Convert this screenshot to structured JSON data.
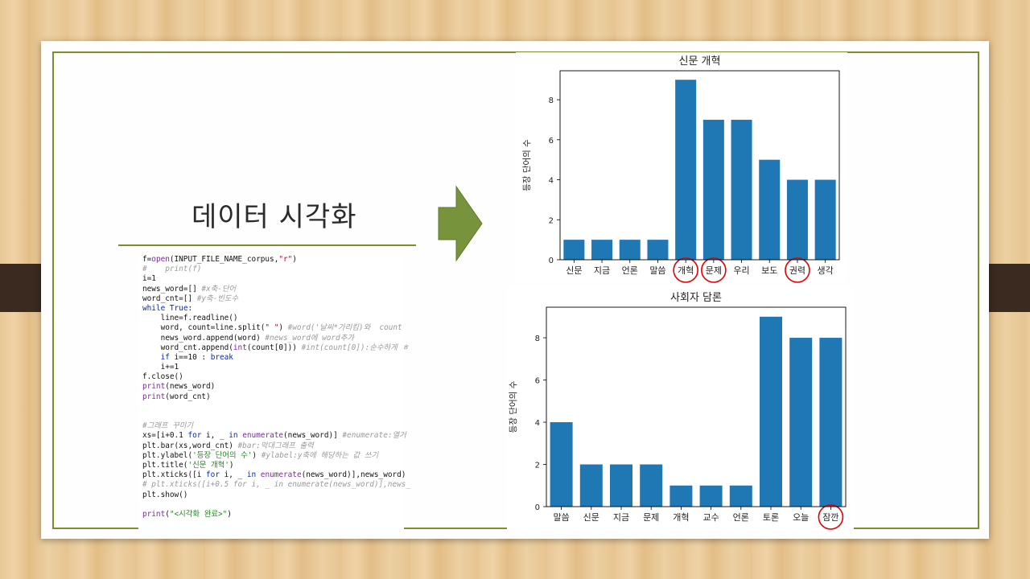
{
  "slide": {
    "title": "데이터 시각화"
  },
  "code_lines": [
    [
      {
        "t": "f="
      },
      {
        "t": "open",
        "cls": "p"
      },
      {
        "t": "(INPUT_FILE_NAME_corpus,"
      },
      {
        "t": "\"r\"",
        "cls": "s"
      },
      {
        "t": ")"
      }
    ],
    [
      {
        "t": "#    print(f)",
        "cls": "c"
      }
    ],
    [
      {
        "t": "i=1"
      }
    ],
    [
      {
        "t": "news_word=[] "
      },
      {
        "t": "#x축-단어",
        "cls": "c"
      }
    ],
    [
      {
        "t": "word_cnt=[] "
      },
      {
        "t": "#y축-빈도수",
        "cls": "c"
      }
    ],
    [
      {
        "t": "while",
        "cls": "k"
      },
      {
        "t": " "
      },
      {
        "t": "True",
        "cls": "k"
      },
      {
        "t": ":"
      }
    ],
    [
      {
        "t": "    line=f.readline()"
      }
    ],
    [
      {
        "t": "    word, count=line.split("
      },
      {
        "t": "\" \"",
        "cls": "s"
      },
      {
        "t": ") "
      },
      {
        "t": "#word('날씨*가리킴)와  count",
        "cls": "c"
      }
    ],
    [
      {
        "t": "    news_word.append(word) "
      },
      {
        "t": "#news_word에 word추가",
        "cls": "c"
      }
    ],
    [
      {
        "t": "    word_cnt.append("
      },
      {
        "t": "int",
        "cls": "p"
      },
      {
        "t": "(count[0])) "
      },
      {
        "t": "#int(count[0]):순수하게 ㅎ",
        "cls": "c"
      }
    ],
    [
      {
        "t": "    "
      },
      {
        "t": "if",
        "cls": "k"
      },
      {
        "t": " i==10 : "
      },
      {
        "t": "break",
        "cls": "k"
      }
    ],
    [
      {
        "t": "    i+=1"
      }
    ],
    [
      {
        "t": "f.close()"
      }
    ],
    [
      {
        "t": "print",
        "cls": "p"
      },
      {
        "t": "(news_word)"
      }
    ],
    [
      {
        "t": "print",
        "cls": "p"
      },
      {
        "t": "(word_cnt)"
      }
    ],
    [],
    [],
    [
      {
        "t": "#그래프 꾸미기",
        "cls": "c"
      }
    ],
    [
      {
        "t": "xs=[i+0.1 "
      },
      {
        "t": "for",
        "cls": "k"
      },
      {
        "t": " i, _ "
      },
      {
        "t": "in",
        "cls": "k"
      },
      {
        "t": " "
      },
      {
        "t": "enumerate",
        "cls": "p"
      },
      {
        "t": "(news_word)] "
      },
      {
        "t": "#enumerate:열거",
        "cls": "c"
      }
    ],
    [
      {
        "t": "plt.bar(xs,word_cnt) "
      },
      {
        "t": "#bar:막대그래프 출력",
        "cls": "c"
      }
    ],
    [
      {
        "t": "plt.ylabel("
      },
      {
        "t": "'등장 단어의 수'",
        "cls": "g"
      },
      {
        "t": ") "
      },
      {
        "t": "#ylabel:y축에 해당하는 값 쓰기",
        "cls": "c"
      }
    ],
    [
      {
        "t": "plt.title("
      },
      {
        "t": "'신문 개혁'",
        "cls": "g"
      },
      {
        "t": ")"
      }
    ],
    [
      {
        "t": "plt.xticks([i "
      },
      {
        "t": "for",
        "cls": "k"
      },
      {
        "t": " i, _ "
      },
      {
        "t": "in",
        "cls": "k"
      },
      {
        "t": " "
      },
      {
        "t": "enumerate",
        "cls": "p"
      },
      {
        "t": "(news_word)],news_word)"
      }
    ],
    [
      {
        "t": "# plt.xticks([i+0.5 for i, _ in enumerate(news_word)],news_",
        "cls": "c"
      }
    ],
    [
      {
        "t": "plt.show()"
      }
    ],
    [],
    [
      {
        "t": "print",
        "cls": "p"
      },
      {
        "t": "("
      },
      {
        "t": "\"<시각화 완료>\"",
        "cls": "g"
      },
      {
        "t": ")"
      }
    ]
  ],
  "chart_data": [
    {
      "type": "bar",
      "title": "신문 개혁",
      "ylabel": "등장 단어의 수",
      "xlabel": "",
      "categories": [
        "신문",
        "지금",
        "언론",
        "말씀",
        "개혁",
        "문제",
        "우리",
        "보도",
        "권력",
        "생각"
      ],
      "values": [
        1,
        1,
        1,
        1,
        9,
        7,
        7,
        5,
        4,
        4
      ],
      "ylim": [
        0,
        9.45
      ],
      "yticks": [
        0,
        2,
        4,
        6,
        8
      ],
      "bar_color": "#1f77b4",
      "circled": [
        "개혁",
        "문제",
        "권력"
      ],
      "grid": false
    },
    {
      "type": "bar",
      "title": "사회자 담론",
      "ylabel": "등장 단어의 수",
      "xlabel": "",
      "categories": [
        "말씀",
        "신문",
        "지금",
        "문제",
        "개혁",
        "교수",
        "언론",
        "토론",
        "오늘",
        "잠깐"
      ],
      "values": [
        4,
        2,
        2,
        2,
        1,
        1,
        1,
        9,
        8,
        8
      ],
      "ylim": [
        0,
        9.45
      ],
      "yticks": [
        0,
        2,
        4,
        6,
        8
      ],
      "bar_color": "#1f77b4",
      "circled": [
        "잠깐"
      ],
      "grid": false
    }
  ],
  "colors": {
    "frame": "#7b8e2c",
    "arrow": "#77933c",
    "highlight_circle": "#e00000"
  }
}
